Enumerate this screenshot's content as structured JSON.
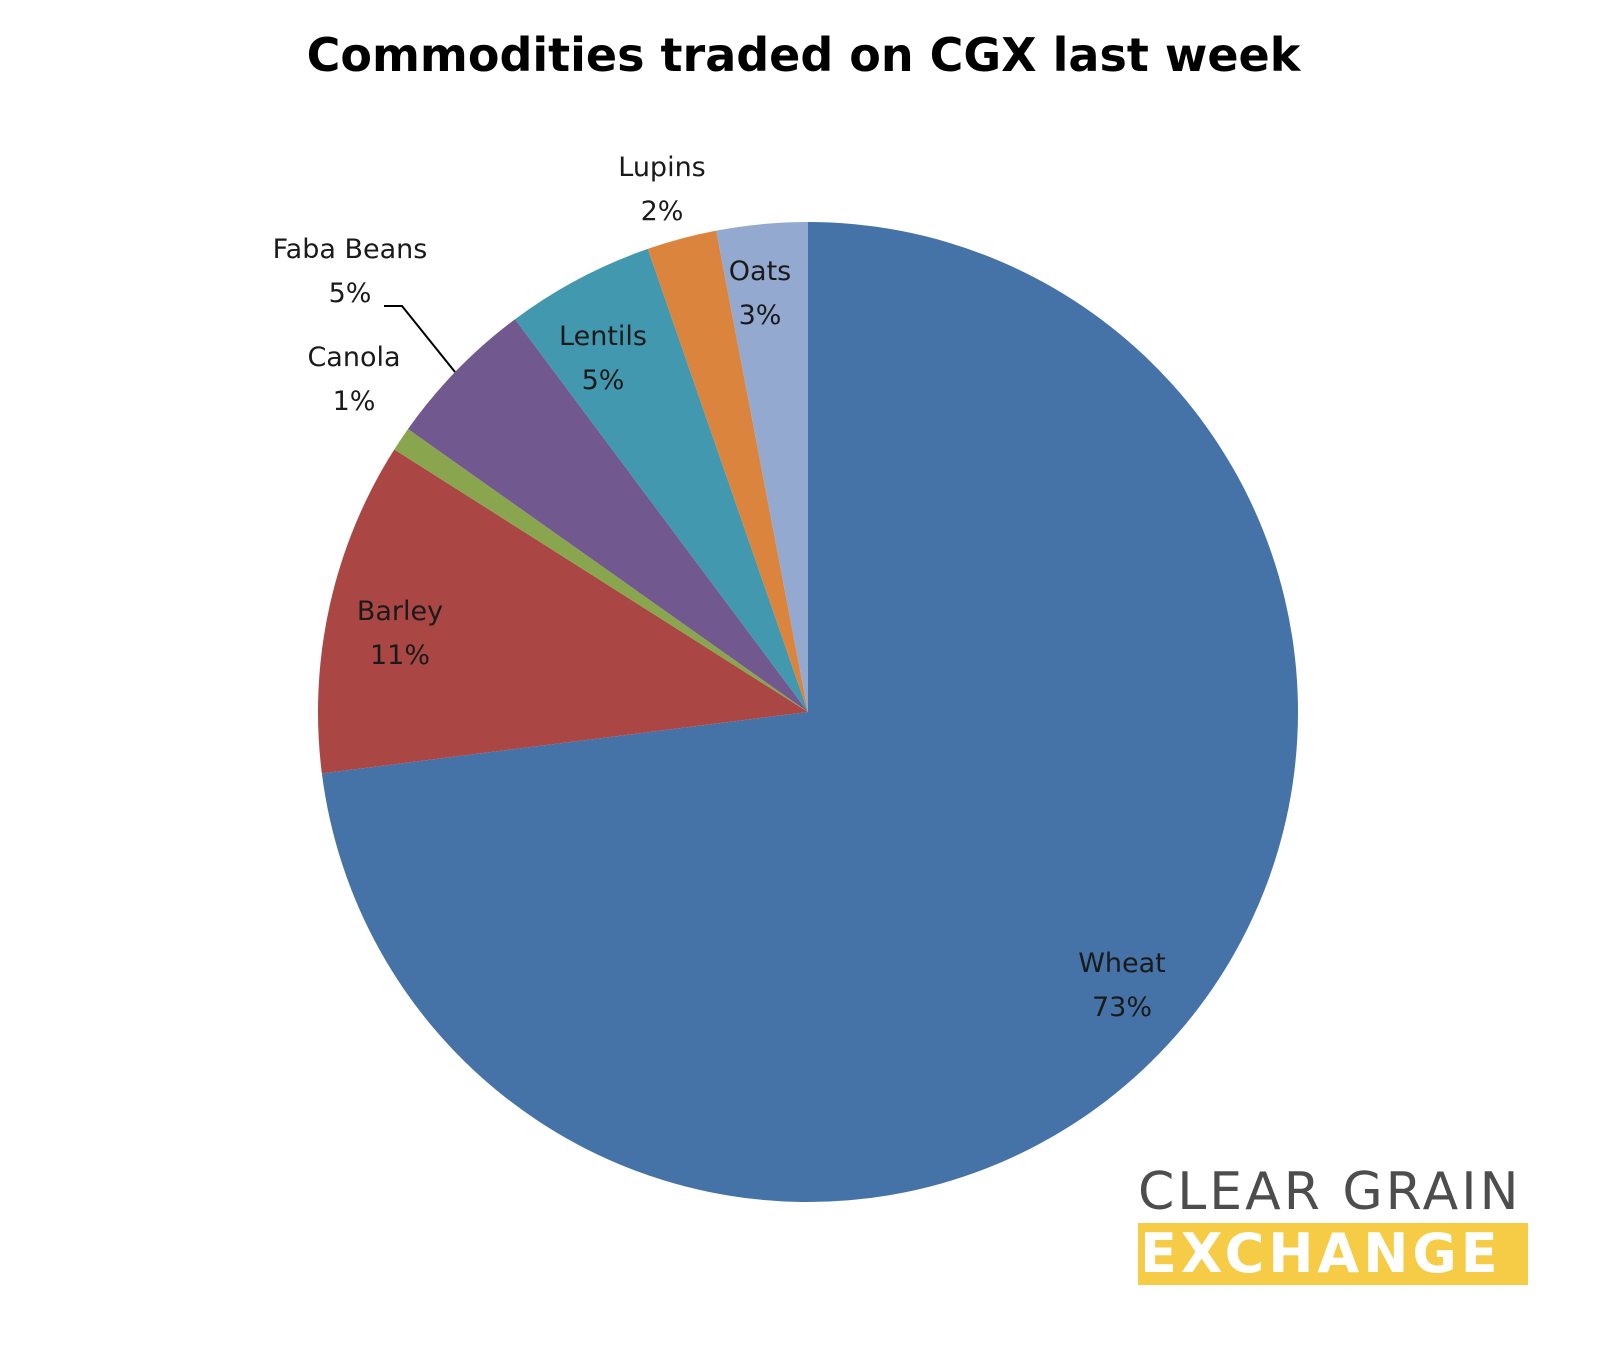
{
  "chart_data": {
    "type": "pie",
    "title": "Commodities traded on CGX last week",
    "start": "top, clockwise",
    "slices": [
      {
        "name": "Wheat",
        "value": 73,
        "label": "Wheat",
        "pct": "73%",
        "color": "#4573a7"
      },
      {
        "name": "Barley",
        "value": 11,
        "label": "Barley",
        "pct": "11%",
        "color": "#aa4744"
      },
      {
        "name": "Canola",
        "value": 0.8,
        "label": "Canola",
        "pct": "1%",
        "color": "#89a54e"
      },
      {
        "name": "Faba Beans",
        "value": 5,
        "label": "Faba Beans",
        "pct": "5%",
        "color": "#71588f"
      },
      {
        "name": "Lentils",
        "value": 4.9,
        "label": "Lentils",
        "pct": "5%",
        "color": "#4298af"
      },
      {
        "name": "Lupins",
        "value": 2.3,
        "label": "Lupins",
        "pct": "2%",
        "color": "#db843d"
      },
      {
        "name": "Oats",
        "value": 3.0,
        "label": "Oats",
        "pct": "3%",
        "color": "#93a9d0"
      }
    ]
  },
  "logo": {
    "line1": "CLEAR GRAIN",
    "line2": "EXCHANGE",
    "colors": {
      "text": "#4d4d4d",
      "band": "#f6cc46"
    }
  }
}
